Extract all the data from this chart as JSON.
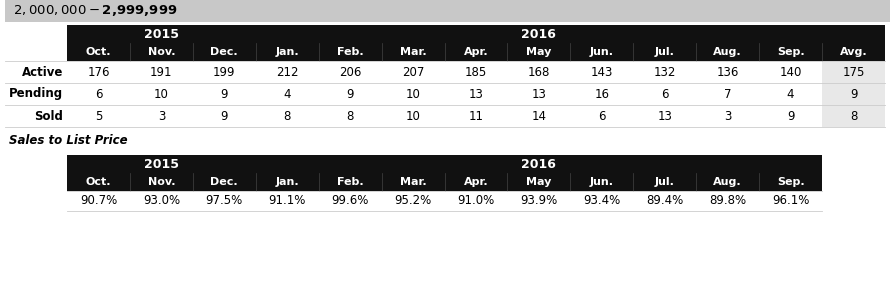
{
  "title": "$2,000,000 - $2,999,999",
  "title_bg": "#c8c8c8",
  "header_bg": "#111111",
  "avg_bg": "#e8e8e8",
  "white": "#ffffff",
  "row_labels": [
    "Active",
    "Pending",
    "Sold"
  ],
  "all_months": [
    "Oct.",
    "Nov.",
    "Dec.",
    "Jan.",
    "Feb.",
    "Mar.",
    "Apr.",
    "May",
    "Jun.",
    "Jul.",
    "Aug.",
    "Sep."
  ],
  "avg_label": "Avg.",
  "active_data": [
    176,
    191,
    199,
    212,
    206,
    207,
    185,
    168,
    143,
    132,
    136,
    140,
    175
  ],
  "pending_data": [
    6,
    10,
    9,
    4,
    9,
    10,
    13,
    13,
    16,
    6,
    7,
    4,
    9
  ],
  "sold_data": [
    5,
    3,
    9,
    8,
    8,
    10,
    11,
    14,
    6,
    13,
    3,
    9,
    8
  ],
  "slp_label": "Sales to List Price",
  "slp_data": [
    "90.7%",
    "93.0%",
    "97.5%",
    "91.1%",
    "99.6%",
    "95.2%",
    "91.0%",
    "93.9%",
    "93.4%",
    "89.4%",
    "89.8%",
    "96.1%"
  ],
  "fig_width": 8.9,
  "fig_height": 3.06,
  "dpi": 100
}
